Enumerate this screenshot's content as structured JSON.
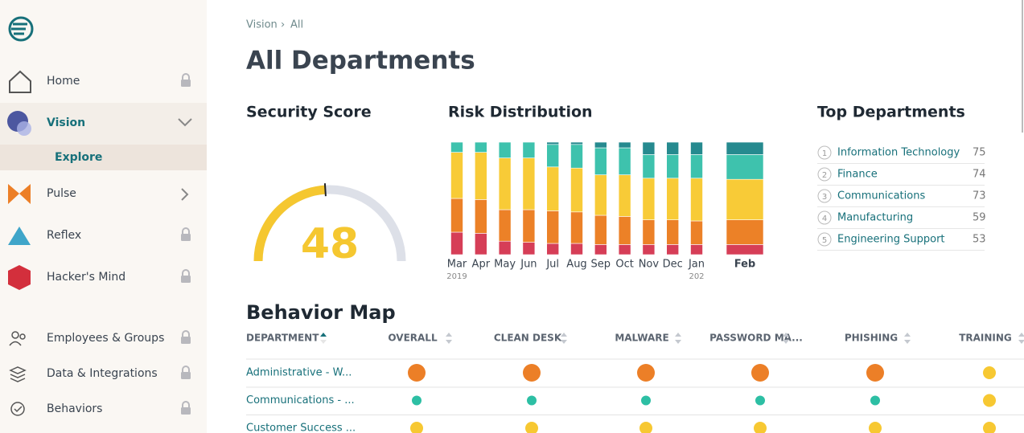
{
  "sidebar": {
    "items": [
      {
        "label": "Home"
      },
      {
        "label": "Vision",
        "children": [
          "Explore"
        ]
      },
      {
        "label": "Pulse"
      },
      {
        "label": "Reflex"
      },
      {
        "label": "Hacker's Mind"
      },
      {
        "label": "Employees & Groups"
      },
      {
        "label": "Data & Integrations"
      },
      {
        "label": "Behaviors"
      }
    ]
  },
  "breadcrumb": [
    "Vision",
    "All"
  ],
  "title": "All Departments",
  "security_score": {
    "title": "Security Score",
    "value": 48,
    "min": 0,
    "max": 100,
    "color": "#f5c730"
  },
  "risk_distribution": {
    "title": "Risk Distribution",
    "type": "bar",
    "stacked": true,
    "categories": [
      "Mar",
      "Apr",
      "May",
      "Jun",
      "Jul",
      "Aug",
      "Sep",
      "Oct",
      "Nov",
      "Dec",
      "Jan",
      "Feb"
    ],
    "year_labels": [
      "2019",
      null,
      null,
      null,
      null,
      null,
      null,
      null,
      null,
      null,
      "202",
      null
    ],
    "ylim": [
      0,
      100
    ],
    "series": [
      {
        "color": "#d63e57",
        "values": [
          20,
          19,
          12,
          11,
          10,
          10,
          9,
          9,
          9,
          9,
          9,
          9
        ]
      },
      {
        "color": "#ec8127",
        "values": [
          30,
          30,
          28,
          29,
          29,
          28,
          26,
          25,
          22,
          22,
          21,
          22
        ]
      },
      {
        "color": "#f8cb37",
        "values": [
          41,
          42,
          46,
          46,
          39,
          39,
          36,
          37,
          37,
          37,
          38,
          36
        ]
      },
      {
        "color": "#3ec2ad",
        "values": [
          9,
          9,
          14,
          14,
          20,
          21,
          24,
          24,
          21,
          21,
          21,
          22
        ]
      },
      {
        "color": "#268a8f",
        "values": [
          0,
          0,
          0,
          0,
          2,
          2,
          5,
          5,
          11,
          11,
          11,
          11
        ]
      }
    ]
  },
  "top_departments": {
    "title": "Top Departments",
    "rows": [
      {
        "rank": 1,
        "name": "Information Technology",
        "score": 75
      },
      {
        "rank": 2,
        "name": "Finance",
        "score": 74
      },
      {
        "rank": 3,
        "name": "Communications",
        "score": 73
      },
      {
        "rank": 4,
        "name": "Manufacturing",
        "score": 59
      },
      {
        "rank": 5,
        "name": "Engineering Support",
        "score": 53
      }
    ]
  },
  "behavior_map": {
    "title": "Behavior Map",
    "columns": [
      "DEPARTMENT",
      "OVERALL",
      "CLEAN DESK",
      "MALWARE",
      "PASSWORD MA...",
      "PHISHING",
      "TRAINING"
    ],
    "level_colors": [
      "#2dbfa4",
      "#f7c832",
      "#ec7f27"
    ],
    "rows": [
      {
        "department": "Administrative - W...",
        "levels": [
          3,
          3,
          3,
          3,
          3,
          2
        ]
      },
      {
        "department": "Communications - ...",
        "levels": [
          1,
          1,
          1,
          1,
          1,
          2
        ]
      },
      {
        "department": "Customer Success ...",
        "levels": [
          2,
          2,
          2,
          2,
          2,
          2
        ]
      }
    ]
  }
}
